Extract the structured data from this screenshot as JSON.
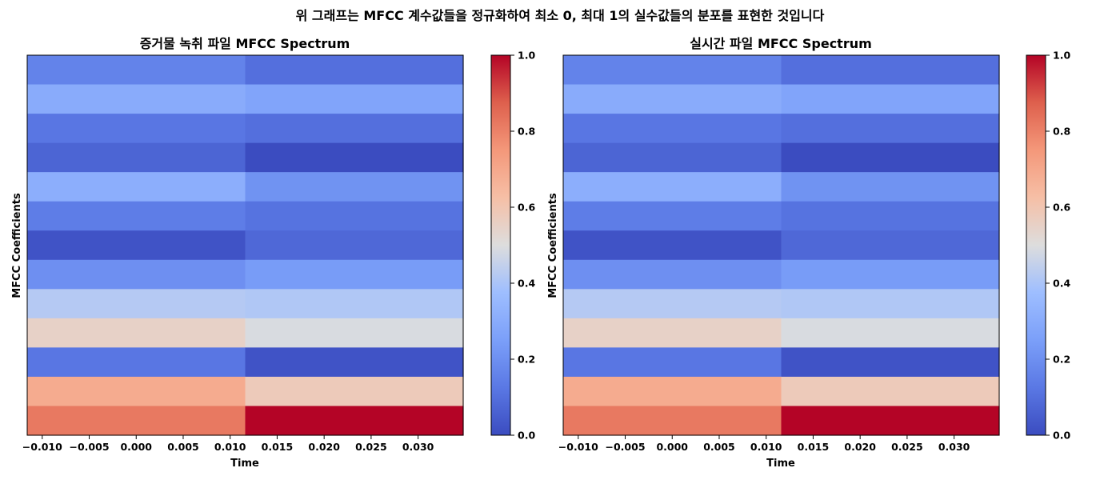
{
  "suptitle": "위 그래프는 MFCC 계수값들을 정규화하여 최소 0, 최대 1의 실수값들의 분포를 표현한 것입니다",
  "chart_data": [
    {
      "type": "heatmap",
      "title": "증거물 녹취 파일 MFCC Spectrum",
      "xlabel": "Time",
      "ylabel": "MFCC Coefficients",
      "xlim": [
        -0.0116,
        0.0348
      ],
      "x_ticks": [
        "−0.010",
        "−0.005",
        "0.000",
        "0.005",
        "0.010",
        "0.015",
        "0.020",
        "0.025",
        "0.030"
      ],
      "x_tick_values": [
        -0.01,
        -0.005,
        0.0,
        0.005,
        0.01,
        0.015,
        0.02,
        0.025,
        0.03
      ],
      "frames_x_edges": [
        -0.0116,
        0.0116,
        0.0348
      ],
      "n_coefficients": 13,
      "colormap": "coolwarm",
      "clim": [
        0,
        1
      ],
      "colorbar_ticks": [
        "0.0",
        "0.2",
        "0.4",
        "0.6",
        "0.8",
        "1.0"
      ],
      "colorbar_tick_values": [
        0,
        0.2,
        0.4,
        0.6,
        0.8,
        1.0
      ],
      "values_by_row_top_to_bottom": [
        [
          0.16,
          0.1
        ],
        [
          0.3,
          0.27
        ],
        [
          0.12,
          0.1
        ],
        [
          0.07,
          0.0
        ],
        [
          0.31,
          0.21
        ],
        [
          0.14,
          0.11
        ],
        [
          0.02,
          0.08
        ],
        [
          0.2,
          0.24
        ],
        [
          0.42,
          0.41
        ],
        [
          0.55,
          0.49
        ],
        [
          0.12,
          0.02
        ],
        [
          0.69,
          0.58
        ],
        [
          0.82,
          1.0
        ]
      ]
    },
    {
      "type": "heatmap",
      "title": "실시간 파일 MFCC Spectrum",
      "xlabel": "Time",
      "ylabel": "MFCC Coefficients",
      "xlim": [
        -0.0116,
        0.0348
      ],
      "x_ticks": [
        "−0.010",
        "−0.005",
        "0.000",
        "0.005",
        "0.010",
        "0.015",
        "0.020",
        "0.025",
        "0.030"
      ],
      "x_tick_values": [
        -0.01,
        -0.005,
        0.0,
        0.005,
        0.01,
        0.015,
        0.02,
        0.025,
        0.03
      ],
      "frames_x_edges": [
        -0.0116,
        0.0116,
        0.0348
      ],
      "n_coefficients": 13,
      "colormap": "coolwarm",
      "clim": [
        0,
        1
      ],
      "colorbar_ticks": [
        "0.0",
        "0.2",
        "0.4",
        "0.6",
        "0.8",
        "1.0"
      ],
      "colorbar_tick_values": [
        0,
        0.2,
        0.4,
        0.6,
        0.8,
        1.0
      ],
      "values_by_row_top_to_bottom": [
        [
          0.16,
          0.1
        ],
        [
          0.3,
          0.27
        ],
        [
          0.12,
          0.1
        ],
        [
          0.07,
          0.0
        ],
        [
          0.31,
          0.21
        ],
        [
          0.14,
          0.11
        ],
        [
          0.02,
          0.08
        ],
        [
          0.2,
          0.24
        ],
        [
          0.42,
          0.41
        ],
        [
          0.55,
          0.49
        ],
        [
          0.12,
          0.02
        ],
        [
          0.69,
          0.58
        ],
        [
          0.82,
          1.0
        ]
      ]
    }
  ]
}
